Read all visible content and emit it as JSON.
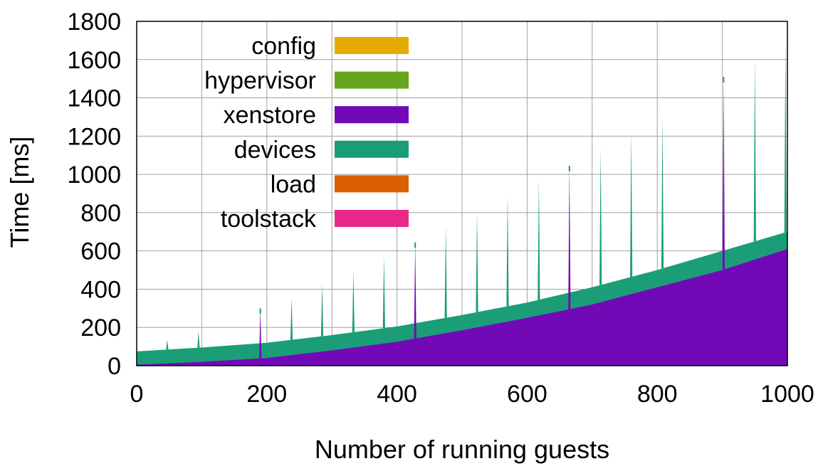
{
  "chart_data": {
    "type": "area",
    "stacked": true,
    "xlabel": "Number of running guests",
    "ylabel": "Time [ms]",
    "xlim": [
      0,
      1000
    ],
    "ylim": [
      0,
      1800
    ],
    "xticks": [
      0,
      200,
      400,
      600,
      800,
      1000
    ],
    "yticks": [
      0,
      200,
      400,
      600,
      800,
      1000,
      1200,
      1400,
      1600,
      1800
    ],
    "grid": true,
    "legend_position": "top-left",
    "series": [
      {
        "name": "config",
        "color": "#e6ab02"
      },
      {
        "name": "hypervisor",
        "color": "#66a61e"
      },
      {
        "name": "xenstore",
        "color": "#7209b7"
      },
      {
        "name": "devices",
        "color": "#1b9e77"
      },
      {
        "name": "load",
        "color": "#d95f02"
      },
      {
        "name": "toolstack",
        "color": "#e7298a"
      }
    ],
    "xenstore_baseline": {
      "x": [
        0,
        100,
        200,
        300,
        400,
        500,
        600,
        700,
        800,
        900,
        1000
      ],
      "y": [
        5,
        20,
        40,
        80,
        125,
        185,
        250,
        320,
        410,
        500,
        610
      ]
    },
    "devices_top": {
      "x": [
        0,
        100,
        200,
        300,
        400,
        500,
        600,
        700,
        800,
        900,
        1000
      ],
      "y": [
        75,
        95,
        120,
        160,
        205,
        265,
        330,
        410,
        500,
        600,
        700
      ]
    },
    "spikes": [
      {
        "x": 47,
        "top": 135,
        "series": "devices"
      },
      {
        "x": 95,
        "top": 180,
        "series": "devices"
      },
      {
        "x": 190,
        "top": 300,
        "series": "xenstore"
      },
      {
        "x": 238,
        "top": 355,
        "series": "devices"
      },
      {
        "x": 285,
        "top": 430,
        "series": "devices"
      },
      {
        "x": 333,
        "top": 500,
        "series": "devices"
      },
      {
        "x": 380,
        "top": 575,
        "series": "devices"
      },
      {
        "x": 428,
        "top": 645,
        "series": "xenstore"
      },
      {
        "x": 475,
        "top": 730,
        "series": "devices"
      },
      {
        "x": 523,
        "top": 810,
        "series": "devices"
      },
      {
        "x": 570,
        "top": 890,
        "series": "devices"
      },
      {
        "x": 618,
        "top": 975,
        "series": "devices"
      },
      {
        "x": 665,
        "top": 1045,
        "series": "xenstore"
      },
      {
        "x": 713,
        "top": 1140,
        "series": "devices"
      },
      {
        "x": 760,
        "top": 1225,
        "series": "devices"
      },
      {
        "x": 808,
        "top": 1305,
        "series": "devices"
      },
      {
        "x": 902,
        "top": 1510,
        "series": "xenstore"
      },
      {
        "x": 950,
        "top": 1615,
        "series": "devices"
      },
      {
        "x": 997,
        "top": 1690,
        "series": "devices"
      }
    ]
  }
}
